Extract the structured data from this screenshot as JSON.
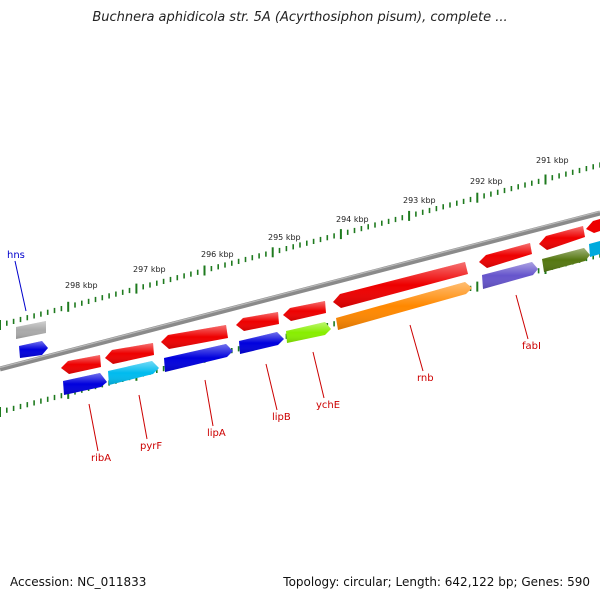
{
  "title": "Buchnera aphidicola str. 5A (Acyrthosiphon pisum), complete ...",
  "footer": {
    "accession": "Accession: NC_011833",
    "summary": "Topology: circular; Length: 642,122 bp; Genes: 590"
  },
  "colors": {
    "backbone": "#7f7f7f",
    "tick": "#1e7a1e",
    "label_red": "#cc0000",
    "label_blue": "#0000cc"
  },
  "ticks": [
    {
      "label": "291 kbp"
    },
    {
      "label": "292 kbp"
    },
    {
      "label": "293 kbp"
    },
    {
      "label": "294 kbp"
    },
    {
      "label": "295 kbp"
    },
    {
      "label": "296 kbp"
    },
    {
      "label": "297 kbp"
    },
    {
      "label": "298 kbp"
    }
  ],
  "genes": [
    {
      "name": "hns",
      "color": "#0000cc"
    },
    {
      "name": "ribA",
      "color": "#cc0000"
    },
    {
      "name": "pyrF",
      "color": "#cc0000"
    },
    {
      "name": "lipA",
      "color": "#cc0000"
    },
    {
      "name": "lipB",
      "color": "#cc0000"
    },
    {
      "name": "ychE",
      "color": "#cc0000"
    },
    {
      "name": "rnb",
      "color": "#cc0000"
    },
    {
      "name": "fabI",
      "color": "#cc0000"
    }
  ]
}
